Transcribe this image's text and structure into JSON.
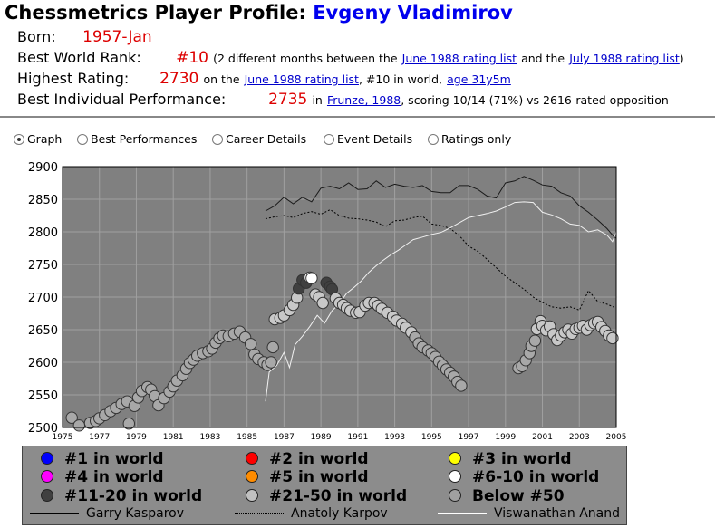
{
  "header": {
    "title_prefix": "Chessmetrics Player Profile:",
    "player_name": "Evgeny Vladimirov"
  },
  "info": {
    "born_label": "Born:",
    "born_value": "1957-Jan",
    "rank_label": "Best World Rank:",
    "rank_value": "#10",
    "rank_note_1": "(2 different months between the",
    "rank_link_1": "June 1988 rating list",
    "rank_note_2": "and the",
    "rank_link_2": "July 1988 rating list",
    "rank_note_3": ")",
    "highest_label": "Highest Rating:",
    "highest_value": "2730",
    "highest_note_1": "on the",
    "highest_link_1": "June 1988 rating list",
    "highest_note_2": ", #10 in world,",
    "highest_link_2": "age 31y5m",
    "perf_label": "Best Individual Performance:",
    "perf_value": "2735",
    "perf_note_1": "in",
    "perf_link": "Frunze, 1988",
    "perf_note_2": ", scoring 10/14 (71%) vs 2616-rated opposition"
  },
  "tabs": [
    {
      "label": "Graph",
      "selected": true
    },
    {
      "label": "Best Performances",
      "selected": false
    },
    {
      "label": "Career Details",
      "selected": false
    },
    {
      "label": "Event Details",
      "selected": false
    },
    {
      "label": "Ratings only",
      "selected": false
    }
  ],
  "legend": {
    "markers": [
      {
        "label": "#1 in world",
        "color": "#0000ff"
      },
      {
        "label": "#2 in world",
        "color": "#ff0000"
      },
      {
        "label": "#3 in world",
        "color": "#ffff00"
      },
      {
        "label": "#4 in world",
        "color": "#ff00ff"
      },
      {
        "label": "#5 in world",
        "color": "#ff8c00"
      },
      {
        "label": "#6-10 in world",
        "color": "#ffffff"
      },
      {
        "label": "#11-20 in world",
        "color": "#404040"
      },
      {
        "label": "#21-50 in world",
        "color": "#c0c0c0"
      },
      {
        "label": "Below #50",
        "color": "#a0a0a0"
      }
    ],
    "lines": [
      {
        "label": "Garry Kasparov",
        "style": "solid",
        "color": "#000000"
      },
      {
        "label": "Anatoly Karpov",
        "style": "dotted",
        "color": "#000000"
      },
      {
        "label": "Viswanathan Anand",
        "style": "solid",
        "color": "#ffffff"
      }
    ]
  },
  "chart_data": {
    "type": "scatter",
    "title": "",
    "xlabel": "",
    "ylabel": "",
    "xlim": [
      1975,
      2005
    ],
    "ylim": [
      2500,
      2900
    ],
    "x_ticks": [
      "1975",
      "1977",
      "1979",
      "1981",
      "1983",
      "1985",
      "1987",
      "1989",
      "1991",
      "1993",
      "1995",
      "1997",
      "1999",
      "2001",
      "2003",
      "2005"
    ],
    "y_ticks": [
      "2500",
      "2550",
      "2600",
      "2650",
      "2700",
      "2750",
      "2800",
      "2850",
      "2900"
    ],
    "grid": true,
    "background": "#808080",
    "player_series": {
      "name": "Evgeny Vladimirov",
      "points": [
        [
          1975.5,
          2515,
          "below"
        ],
        [
          1975.9,
          2503,
          "below"
        ],
        [
          1976.5,
          2507,
          "below"
        ],
        [
          1976.8,
          2510,
          "below"
        ],
        [
          1977.0,
          2514,
          "below"
        ],
        [
          1977.3,
          2519,
          "below"
        ],
        [
          1977.6,
          2525,
          "below"
        ],
        [
          1977.9,
          2530,
          "below"
        ],
        [
          1978.2,
          2536,
          "below"
        ],
        [
          1978.5,
          2540,
          "below"
        ],
        [
          1978.6,
          2506,
          "below"
        ],
        [
          1978.9,
          2533,
          "below"
        ],
        [
          1979.1,
          2546,
          "below"
        ],
        [
          1979.3,
          2556,
          "below"
        ],
        [
          1979.6,
          2562,
          "below"
        ],
        [
          1979.8,
          2558,
          "below"
        ],
        [
          1980.0,
          2548,
          "below"
        ],
        [
          1980.2,
          2534,
          "below"
        ],
        [
          1980.5,
          2545,
          "below"
        ],
        [
          1980.8,
          2555,
          "below"
        ],
        [
          1981.0,
          2563,
          "below"
        ],
        [
          1981.2,
          2572,
          "below"
        ],
        [
          1981.5,
          2580,
          "below"
        ],
        [
          1981.7,
          2590,
          "below"
        ],
        [
          1981.9,
          2599,
          "below"
        ],
        [
          1982.1,
          2604,
          "below"
        ],
        [
          1982.3,
          2610,
          "below"
        ],
        [
          1982.6,
          2614,
          "below"
        ],
        [
          1982.9,
          2617,
          "below"
        ],
        [
          1983.1,
          2621,
          "below"
        ],
        [
          1983.3,
          2630,
          "below"
        ],
        [
          1983.5,
          2637,
          "below"
        ],
        [
          1983.7,
          2641,
          "below"
        ],
        [
          1984.0,
          2640,
          "below"
        ],
        [
          1984.3,
          2644,
          "below"
        ],
        [
          1984.6,
          2647,
          "below"
        ],
        [
          1984.9,
          2638,
          "below"
        ],
        [
          1985.2,
          2628,
          "below"
        ],
        [
          1985.4,
          2612,
          "below"
        ],
        [
          1985.6,
          2605,
          "below"
        ],
        [
          1985.9,
          2600,
          "below"
        ],
        [
          1986.1,
          2596,
          "below"
        ],
        [
          1986.3,
          2600,
          "below"
        ],
        [
          1986.4,
          2623,
          "below"
        ],
        [
          1986.5,
          2666,
          "t21"
        ],
        [
          1986.8,
          2668,
          "t21"
        ],
        [
          1987.0,
          2672,
          "t21"
        ],
        [
          1987.3,
          2680,
          "t21"
        ],
        [
          1987.5,
          2688,
          "t21"
        ],
        [
          1987.7,
          2699,
          "t21"
        ],
        [
          1987.8,
          2713,
          "t11"
        ],
        [
          1988.0,
          2726,
          "t11"
        ],
        [
          1988.2,
          2722,
          "t11"
        ],
        [
          1988.4,
          2730,
          "t6"
        ],
        [
          1988.5,
          2729,
          "t6"
        ],
        [
          1988.7,
          2704,
          "t21"
        ],
        [
          1988.9,
          2700,
          "t21"
        ],
        [
          1989.1,
          2691,
          "t21"
        ],
        [
          1989.3,
          2722,
          "t11"
        ],
        [
          1989.5,
          2716,
          "t11"
        ],
        [
          1989.6,
          2712,
          "t11"
        ],
        [
          1989.8,
          2698,
          "t21"
        ],
        [
          1990.0,
          2691,
          "t21"
        ],
        [
          1990.2,
          2688,
          "t21"
        ],
        [
          1990.4,
          2683,
          "t21"
        ],
        [
          1990.6,
          2679,
          "t21"
        ],
        [
          1990.9,
          2676,
          "t21"
        ],
        [
          1991.1,
          2677,
          "t21"
        ],
        [
          1991.4,
          2687,
          "t21"
        ],
        [
          1991.6,
          2691,
          "t21"
        ],
        [
          1991.9,
          2691,
          "t21"
        ],
        [
          1992.1,
          2687,
          "t21"
        ],
        [
          1992.3,
          2682,
          "t21"
        ],
        [
          1992.6,
          2676,
          "t21"
        ],
        [
          1992.9,
          2670,
          "t21"
        ],
        [
          1993.1,
          2664,
          "t21"
        ],
        [
          1993.4,
          2659,
          "t21"
        ],
        [
          1993.6,
          2653,
          "t21"
        ],
        [
          1993.9,
          2646,
          "t21"
        ],
        [
          1994.1,
          2638,
          "below"
        ],
        [
          1994.3,
          2629,
          "below"
        ],
        [
          1994.5,
          2623,
          "below"
        ],
        [
          1994.8,
          2618,
          "below"
        ],
        [
          1995.0,
          2614,
          "below"
        ],
        [
          1995.2,
          2608,
          "below"
        ],
        [
          1995.4,
          2601,
          "below"
        ],
        [
          1995.6,
          2595,
          "below"
        ],
        [
          1995.8,
          2589,
          "below"
        ],
        [
          1996.0,
          2584,
          "below"
        ],
        [
          1996.2,
          2578,
          "below"
        ],
        [
          1996.4,
          2570,
          "below"
        ],
        [
          1996.6,
          2564,
          "below"
        ],
        [
          1999.7,
          2591,
          "below"
        ],
        [
          1999.9,
          2594,
          "below"
        ],
        [
          2000.1,
          2603,
          "below"
        ],
        [
          2000.3,
          2614,
          "below"
        ],
        [
          2000.4,
          2625,
          "below"
        ],
        [
          2000.6,
          2633,
          "below"
        ],
        [
          2000.7,
          2651,
          "t21"
        ],
        [
          2000.9,
          2663,
          "t21"
        ],
        [
          2001.0,
          2656,
          "t21"
        ],
        [
          2001.2,
          2649,
          "t21"
        ],
        [
          2001.4,
          2655,
          "t21"
        ],
        [
          2001.6,
          2643,
          "t21"
        ],
        [
          2001.8,
          2634,
          "t21"
        ],
        [
          2002.0,
          2641,
          "t21"
        ],
        [
          2002.2,
          2646,
          "t21"
        ],
        [
          2002.4,
          2650,
          "t21"
        ],
        [
          2002.6,
          2644,
          "t21"
        ],
        [
          2002.8,
          2651,
          "t21"
        ],
        [
          2003.0,
          2653,
          "t21"
        ],
        [
          2003.2,
          2656,
          "t21"
        ],
        [
          2003.4,
          2650,
          "t21"
        ],
        [
          2003.6,
          2657,
          "t21"
        ],
        [
          2003.8,
          2660,
          "t21"
        ],
        [
          2004.0,
          2662,
          "t21"
        ],
        [
          2004.2,
          2654,
          "t21"
        ],
        [
          2004.4,
          2648,
          "t21"
        ],
        [
          2004.6,
          2641,
          "t21"
        ],
        [
          2004.8,
          2637,
          "t21"
        ]
      ]
    },
    "reference_lines": [
      {
        "name": "Garry Kasparov",
        "style": "solid",
        "points": [
          [
            1986.0,
            2832
          ],
          [
            1986.5,
            2840
          ],
          [
            1987.0,
            2853
          ],
          [
            1987.5,
            2843
          ],
          [
            1988.0,
            2853
          ],
          [
            1988.5,
            2846
          ],
          [
            1989.0,
            2867
          ],
          [
            1989.5,
            2870
          ],
          [
            1990.0,
            2866
          ],
          [
            1990.5,
            2875
          ],
          [
            1991.0,
            2865
          ],
          [
            1991.5,
            2866
          ],
          [
            1992.0,
            2878
          ],
          [
            1992.5,
            2868
          ],
          [
            1993.0,
            2873
          ],
          [
            1993.5,
            2870
          ],
          [
            1994.0,
            2868
          ],
          [
            1994.5,
            2871
          ],
          [
            1995.0,
            2862
          ],
          [
            1995.5,
            2860
          ],
          [
            1996.0,
            2860
          ],
          [
            1996.5,
            2871
          ],
          [
            1997.0,
            2871
          ],
          [
            1997.5,
            2865
          ],
          [
            1998.0,
            2855
          ],
          [
            1998.5,
            2852
          ],
          [
            1999.0,
            2875
          ],
          [
            1999.5,
            2878
          ],
          [
            2000.0,
            2885
          ],
          [
            2000.5,
            2879
          ],
          [
            2001.0,
            2872
          ],
          [
            2001.5,
            2870
          ],
          [
            2002.0,
            2860
          ],
          [
            2002.5,
            2855
          ],
          [
            2003.0,
            2840
          ],
          [
            2003.5,
            2830
          ],
          [
            2004.0,
            2818
          ],
          [
            2004.5,
            2805
          ],
          [
            2004.8,
            2795
          ],
          [
            2005.0,
            2790
          ]
        ]
      },
      {
        "name": "Anatoly Karpov",
        "style": "dotted",
        "points": [
          [
            1986.0,
            2820
          ],
          [
            1986.5,
            2823
          ],
          [
            1987.0,
            2825
          ],
          [
            1987.5,
            2822
          ],
          [
            1988.0,
            2828
          ],
          [
            1988.5,
            2831
          ],
          [
            1989.0,
            2827
          ],
          [
            1989.5,
            2834
          ],
          [
            1990.0,
            2825
          ],
          [
            1990.5,
            2821
          ],
          [
            1991.0,
            2820
          ],
          [
            1991.5,
            2818
          ],
          [
            1992.0,
            2815
          ],
          [
            1992.5,
            2808
          ],
          [
            1993.0,
            2817
          ],
          [
            1993.5,
            2818
          ],
          [
            1994.0,
            2822
          ],
          [
            1994.5,
            2824
          ],
          [
            1995.0,
            2812
          ],
          [
            1995.5,
            2810
          ],
          [
            1996.0,
            2805
          ],
          [
            1996.5,
            2794
          ],
          [
            1997.0,
            2778
          ],
          [
            1997.5,
            2770
          ],
          [
            1998.0,
            2758
          ],
          [
            1998.5,
            2745
          ],
          [
            1999.0,
            2732
          ],
          [
            1999.5,
            2722
          ],
          [
            2000.0,
            2712
          ],
          [
            2000.5,
            2700
          ],
          [
            2001.0,
            2692
          ],
          [
            2001.5,
            2685
          ],
          [
            2002.0,
            2683
          ],
          [
            2002.5,
            2685
          ],
          [
            2003.0,
            2680
          ],
          [
            2003.5,
            2710
          ],
          [
            2004.0,
            2693
          ],
          [
            2004.5,
            2689
          ],
          [
            2005.0,
            2683
          ]
        ]
      },
      {
        "name": "Viswanathan Anand",
        "style": "solid",
        "points": [
          [
            1986.0,
            2540
          ],
          [
            1986.2,
            2585
          ],
          [
            1986.6,
            2595
          ],
          [
            1987.0,
            2615
          ],
          [
            1987.3,
            2592
          ],
          [
            1987.6,
            2627
          ],
          [
            1988.0,
            2640
          ],
          [
            1988.4,
            2655
          ],
          [
            1988.8,
            2672
          ],
          [
            1989.2,
            2660
          ],
          [
            1989.6,
            2679
          ],
          [
            1990.0,
            2690
          ],
          [
            1990.4,
            2706
          ],
          [
            1990.8,
            2715
          ],
          [
            1991.2,
            2725
          ],
          [
            1991.6,
            2738
          ],
          [
            1992.0,
            2748
          ],
          [
            1992.4,
            2757
          ],
          [
            1992.8,
            2765
          ],
          [
            1993.2,
            2772
          ],
          [
            1993.6,
            2780
          ],
          [
            1994.0,
            2788
          ],
          [
            1994.5,
            2792
          ],
          [
            1995.0,
            2796
          ],
          [
            1995.5,
            2799
          ],
          [
            1996.0,
            2806
          ],
          [
            1996.5,
            2814
          ],
          [
            1997.0,
            2822
          ],
          [
            1997.5,
            2825
          ],
          [
            1998.0,
            2828
          ],
          [
            1998.5,
            2832
          ],
          [
            1999.0,
            2838
          ],
          [
            1999.5,
            2845
          ],
          [
            2000.0,
            2846
          ],
          [
            2000.5,
            2845
          ],
          [
            2001.0,
            2830
          ],
          [
            2001.5,
            2826
          ],
          [
            2002.0,
            2820
          ],
          [
            2002.5,
            2812
          ],
          [
            2003.0,
            2810
          ],
          [
            2003.5,
            2800
          ],
          [
            2004.0,
            2803
          ],
          [
            2004.5,
            2795
          ],
          [
            2004.8,
            2785
          ],
          [
            2005.0,
            2800
          ]
        ]
      }
    ],
    "category_colors": {
      "t6": "#ffffff",
      "t11": "#404040",
      "t21": "#c8c8c8",
      "below": "#a8a8a8"
    }
  }
}
